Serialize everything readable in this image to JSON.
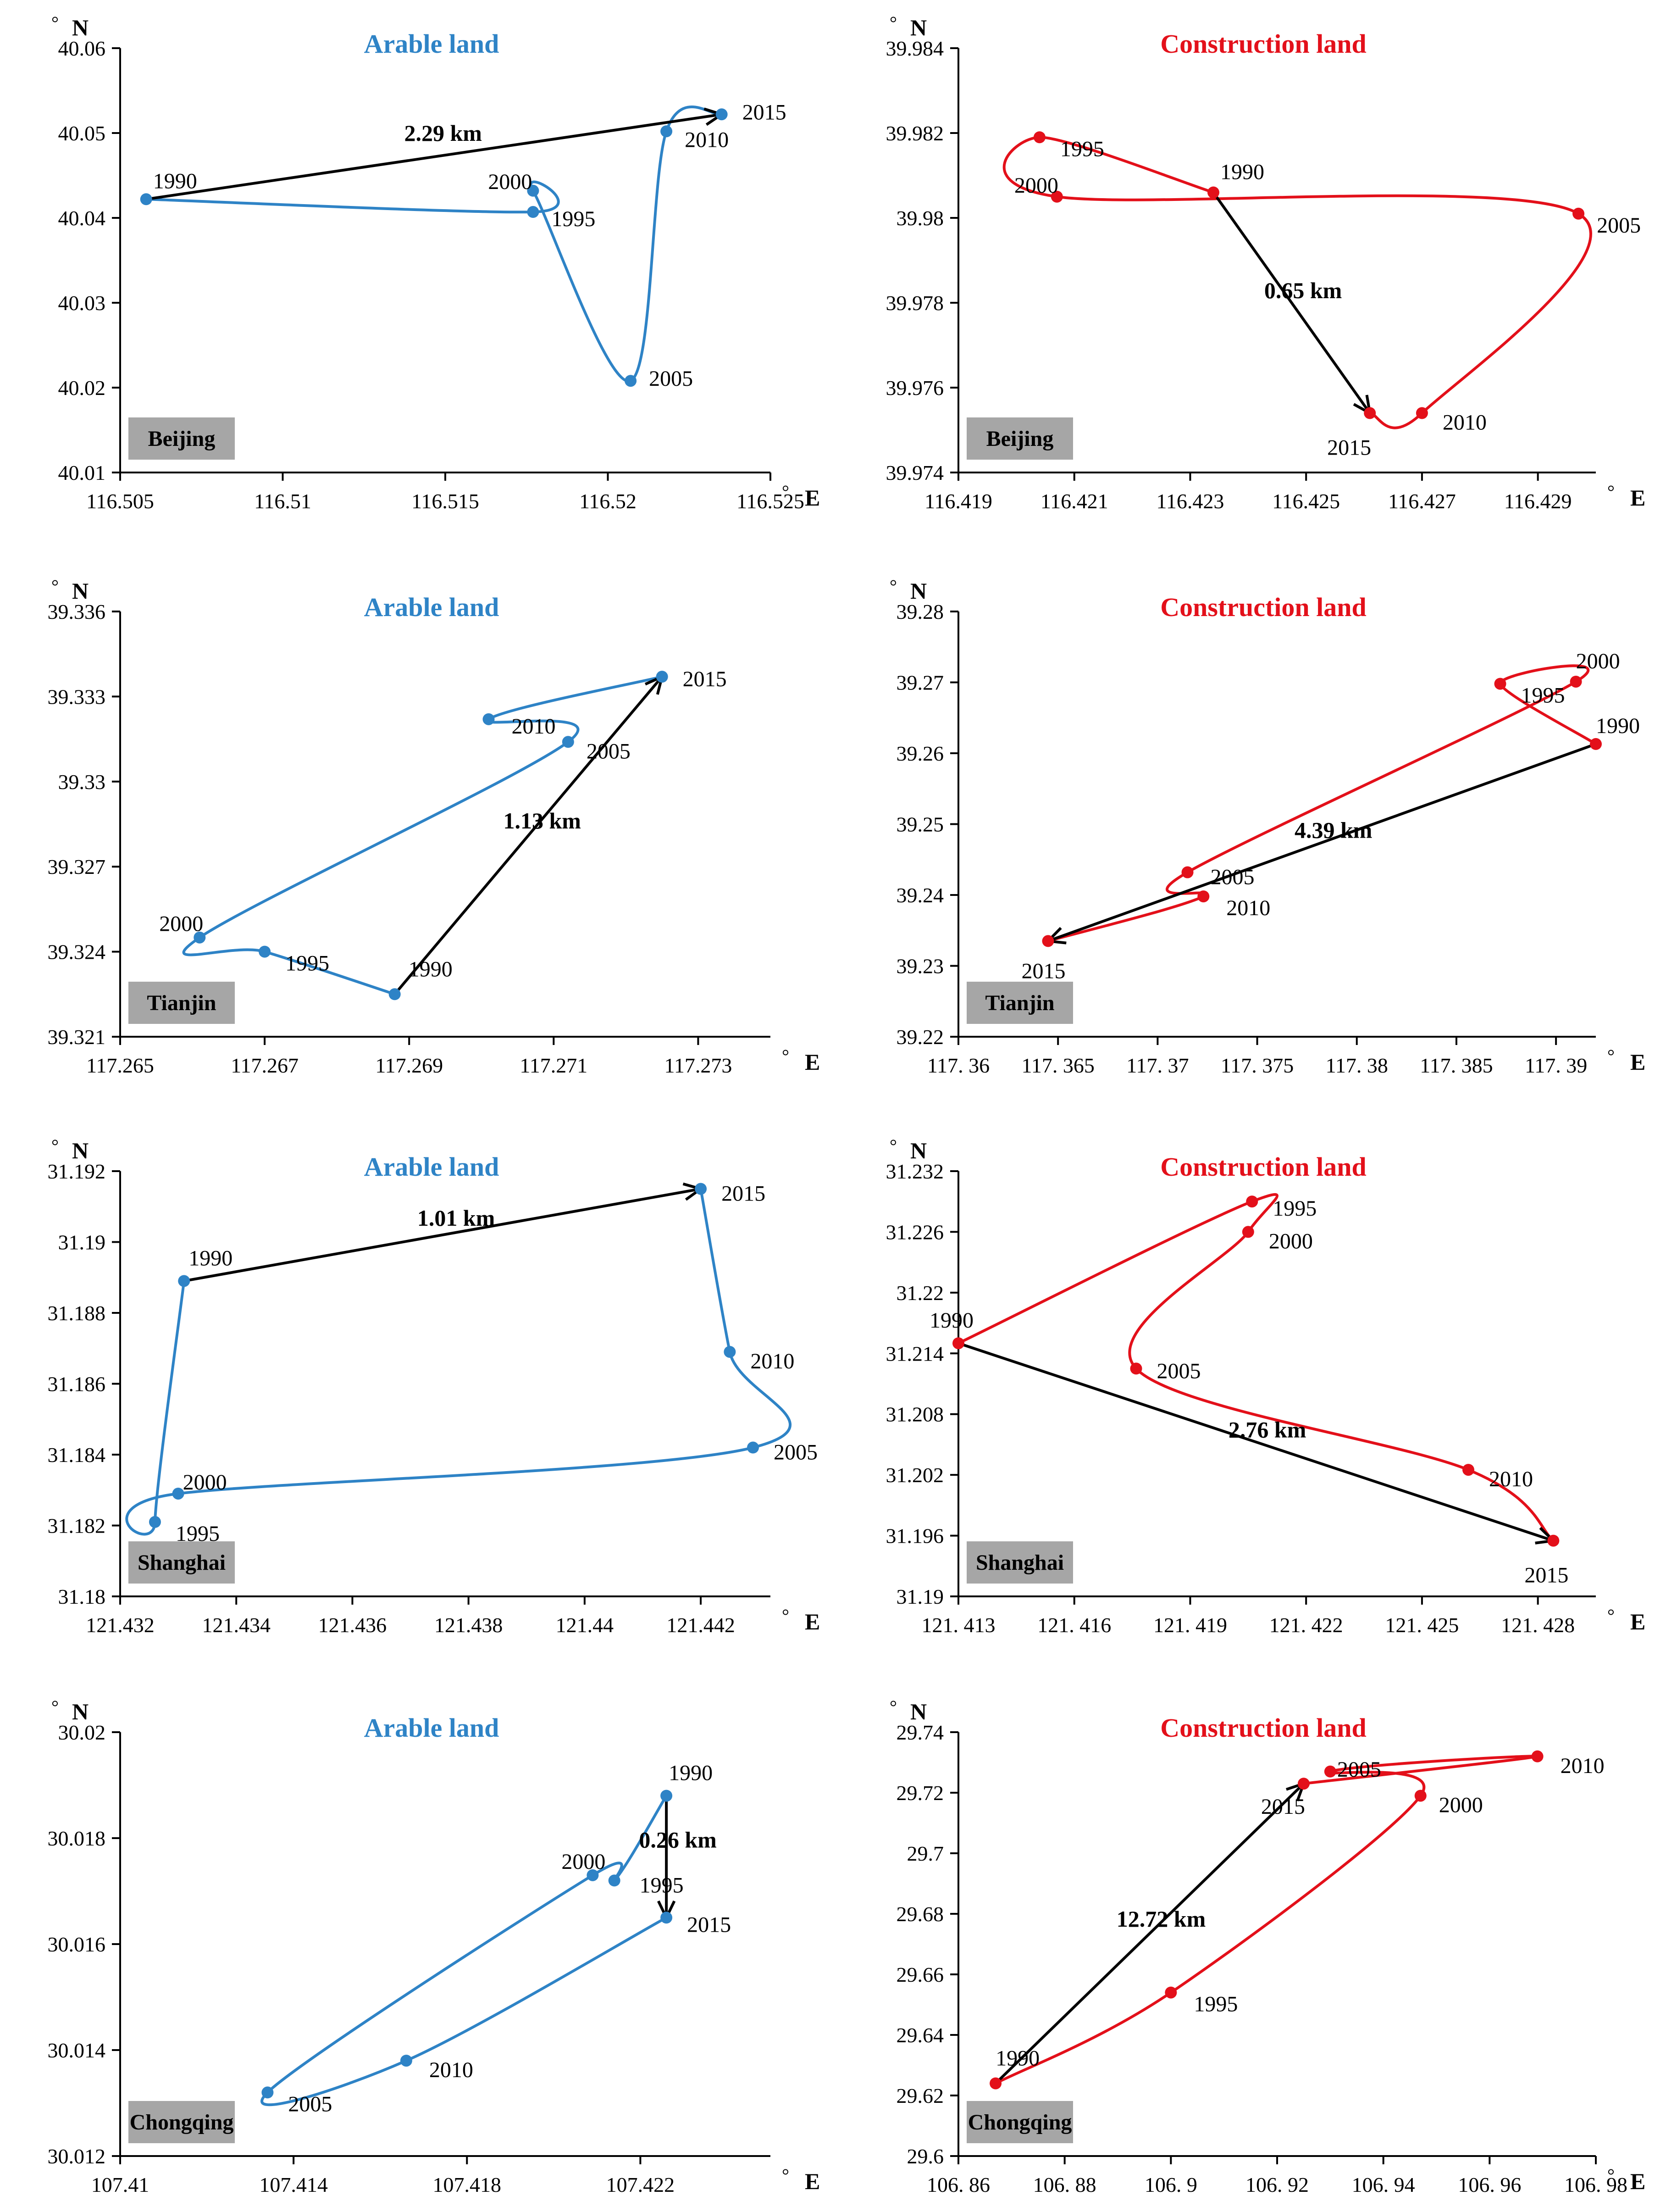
{
  "figure": {
    "axis_unit_y": "° N",
    "axis_unit_x": "° E",
    "distance_unit": "km"
  },
  "colors": {
    "arable": "#2E83C6",
    "construction": "#E3101A",
    "arrow": "#000000",
    "axis": "#000000",
    "label_box": "#A6A6A6"
  },
  "chart_data": [
    {
      "type": "line",
      "title": "Arable land",
      "city": "Beijing",
      "series_color": "arable",
      "xlim": [
        116.505,
        116.525
      ],
      "ylim": [
        40.01,
        40.06
      ],
      "xticks": [
        "116.505",
        "116.51",
        "116.515",
        "116.52",
        "116.525"
      ],
      "yticks": [
        "40.01",
        "40.02",
        "40.03",
        "40.04",
        "40.05",
        "40.06"
      ],
      "points": [
        {
          "year": "1990",
          "x": 116.5058,
          "y": 40.0422
        },
        {
          "year": "1995",
          "x": 116.5177,
          "y": 40.0407
        },
        {
          "year": "2000",
          "x": 116.5177,
          "y": 40.0432
        },
        {
          "year": "2005",
          "x": 116.5207,
          "y": 40.0208
        },
        {
          "year": "2010",
          "x": 116.5218,
          "y": 40.0502
        },
        {
          "year": "2015",
          "x": 116.5235,
          "y": 40.0522
        }
      ],
      "arrow": {
        "from": "1990",
        "to": "2015",
        "label": "2.29 km"
      }
    },
    {
      "type": "line",
      "title": "Construction land",
      "city": "Beijing",
      "series_color": "construction",
      "xlim": [
        116.419,
        116.43
      ],
      "ylim": [
        39.974,
        39.984
      ],
      "xticks": [
        "116.419",
        "116.421",
        "116.423",
        "116.425",
        "116.427",
        "116.429"
      ],
      "yticks": [
        "39.974",
        "39.976",
        "39.978",
        "39.98",
        "39.982",
        "39.984"
      ],
      "points": [
        {
          "year": "1990",
          "x": 116.4234,
          "y": 39.9806
        },
        {
          "year": "1995",
          "x": 116.4204,
          "y": 39.9819
        },
        {
          "year": "2000",
          "x": 116.4207,
          "y": 39.9805
        },
        {
          "year": "2005",
          "x": 116.4297,
          "y": 39.9801
        },
        {
          "year": "2010",
          "x": 116.427,
          "y": 39.9754
        },
        {
          "year": "2015",
          "x": 116.4261,
          "y": 39.9754
        }
      ],
      "arrow": {
        "from": "1990",
        "to": "2015",
        "label": "0.65 km"
      }
    },
    {
      "type": "line",
      "title": "Arable land",
      "city": "Tianjin",
      "series_color": "arable",
      "xlim": [
        117.265,
        117.274
      ],
      "ylim": [
        39.321,
        39.336
      ],
      "xticks": [
        "117.265",
        "117.267",
        "117.269",
        "117.271",
        "117.273"
      ],
      "yticks": [
        "39.321",
        "39.324",
        "39.327",
        "39.33",
        "39.333",
        "39.336"
      ],
      "points": [
        {
          "year": "1990",
          "x": 117.2688,
          "y": 39.3225
        },
        {
          "year": "1995",
          "x": 117.267,
          "y": 39.324
        },
        {
          "year": "2000",
          "x": 117.2661,
          "y": 39.3245
        },
        {
          "year": "2005",
          "x": 117.2712,
          "y": 39.3314
        },
        {
          "year": "2010",
          "x": 117.2701,
          "y": 39.3322
        },
        {
          "year": "2015",
          "x": 117.2725,
          "y": 39.3337
        }
      ],
      "arrow": {
        "from": "1990",
        "to": "2015",
        "label": "1.13 km"
      }
    },
    {
      "type": "line",
      "title": "Construction land",
      "city": "Tianjin",
      "series_color": "construction",
      "xlim": [
        117.36,
        117.392
      ],
      "ylim": [
        39.22,
        39.28
      ],
      "xticks": [
        "117. 36",
        "117. 365",
        "117. 37",
        "117. 375",
        "117. 38",
        "117. 385",
        "117. 39"
      ],
      "yticks": [
        "39.22",
        "39.23",
        "39.24",
        "39.25",
        "39.26",
        "39.27",
        "39.28"
      ],
      "points": [
        {
          "year": "1990",
          "x": 117.392,
          "y": 39.2613
        },
        {
          "year": "1995",
          "x": 117.3872,
          "y": 39.2698
        },
        {
          "year": "2000",
          "x": 117.391,
          "y": 39.2701
        },
        {
          "year": "2005",
          "x": 117.3715,
          "y": 39.2432
        },
        {
          "year": "2010",
          "x": 117.3723,
          "y": 39.2398
        },
        {
          "year": "2015",
          "x": 117.3645,
          "y": 39.2335
        }
      ],
      "arrow": {
        "from": "1990",
        "to": "2015",
        "label": "4.39 km"
      }
    },
    {
      "type": "line",
      "title": "Arable land",
      "city": "Shanghai",
      "series_color": "arable",
      "xlim": [
        121.432,
        121.4432
      ],
      "ylim": [
        31.18,
        31.192
      ],
      "xticks": [
        "121.432",
        "121.434",
        "121.436",
        "121.438",
        "121.44",
        "121.442"
      ],
      "yticks": [
        "31.18",
        "31.182",
        "31.184",
        "31.186",
        "31.188",
        "31.19",
        "31.192"
      ],
      "points": [
        {
          "year": "1990",
          "x": 121.4331,
          "y": 31.1889
        },
        {
          "year": "1995",
          "x": 121.4326,
          "y": 31.1821
        },
        {
          "year": "2000",
          "x": 121.433,
          "y": 31.1829
        },
        {
          "year": "2005",
          "x": 121.4429,
          "y": 31.1842
        },
        {
          "year": "2010",
          "x": 121.4425,
          "y": 31.1869
        },
        {
          "year": "2015",
          "x": 121.442,
          "y": 31.1915
        }
      ],
      "arrow": {
        "from": "1990",
        "to": "2015",
        "label": "1.01 km"
      }
    },
    {
      "type": "line",
      "title": "Construction land",
      "city": "Shanghai",
      "series_color": "construction",
      "xlim": [
        121.413,
        121.4295
      ],
      "ylim": [
        31.19,
        31.232
      ],
      "xticks": [
        "121. 413",
        "121. 416",
        "121. 419",
        "121. 422",
        "121. 425",
        "121. 428"
      ],
      "yticks": [
        "31.19",
        "31.196",
        "31.202",
        "31.208",
        "31.214",
        "31.22",
        "31.226",
        "31.232"
      ],
      "points": [
        {
          "year": "1990",
          "x": 121.413,
          "y": 31.215
        },
        {
          "year": "1995",
          "x": 121.4206,
          "y": 31.229
        },
        {
          "year": "2000",
          "x": 121.4205,
          "y": 31.226
        },
        {
          "year": "2005",
          "x": 121.4176,
          "y": 31.2125
        },
        {
          "year": "2010",
          "x": 121.4262,
          "y": 31.2025
        },
        {
          "year": "2015",
          "x": 121.4284,
          "y": 31.1955
        }
      ],
      "arrow": {
        "from": "1990",
        "to": "2015",
        "label": "2.76 km"
      }
    },
    {
      "type": "line",
      "title": "Arable land",
      "city": "Chongqing",
      "series_color": "arable",
      "xlim": [
        107.41,
        107.425
      ],
      "ylim": [
        30.012,
        30.02
      ],
      "xticks": [
        "107.41",
        "107.414",
        "107.418",
        "107.422"
      ],
      "yticks": [
        "30.012",
        "30.014",
        "30.016",
        "30.018",
        "30.02"
      ],
      "points": [
        {
          "year": "1990",
          "x": 107.4226,
          "y": 30.0188
        },
        {
          "year": "1995",
          "x": 107.4214,
          "y": 30.0172
        },
        {
          "year": "2000",
          "x": 107.4209,
          "y": 30.0173
        },
        {
          "year": "2005",
          "x": 107.4134,
          "y": 30.0132
        },
        {
          "year": "2010",
          "x": 107.4166,
          "y": 30.0138
        },
        {
          "year": "2015",
          "x": 107.4226,
          "y": 30.0165
        }
      ],
      "arrow": {
        "from": "1990",
        "to": "2015",
        "label": "0.26 km"
      }
    },
    {
      "type": "line",
      "title": "Construction land",
      "city": "Chongqing",
      "series_color": "construction",
      "xlim": [
        106.86,
        106.98
      ],
      "ylim": [
        29.6,
        29.74
      ],
      "xticks": [
        "106. 86",
        "106. 88",
        "106. 9",
        "106. 92",
        "106. 94",
        "106. 96",
        "106. 98"
      ],
      "yticks": [
        "29.6",
        "29.62",
        "29.64",
        "29.66",
        "29.68",
        "29.7",
        "29.72",
        "29.74"
      ],
      "points": [
        {
          "year": "1990",
          "x": 106.867,
          "y": 29.624
        },
        {
          "year": "1995",
          "x": 106.9,
          "y": 29.654
        },
        {
          "year": "2000",
          "x": 106.947,
          "y": 29.719
        },
        {
          "year": "2005",
          "x": 106.93,
          "y": 29.727
        },
        {
          "year": "2010",
          "x": 106.969,
          "y": 29.732
        },
        {
          "year": "2015",
          "x": 106.925,
          "y": 29.723
        }
      ],
      "arrow": {
        "from": "1990",
        "to": "2015",
        "label": "12.72 km"
      }
    }
  ]
}
